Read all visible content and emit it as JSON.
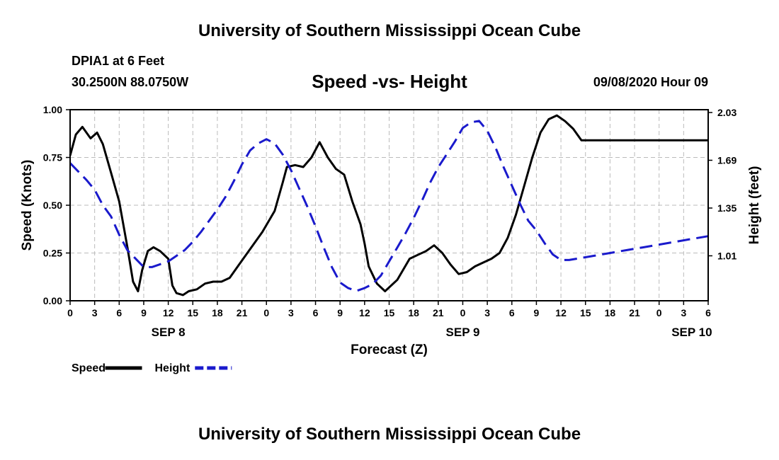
{
  "header": {
    "title": "University of Southern Mississippi Ocean Cube",
    "station": "DPIA1 at 6 Feet",
    "coords": "30.2500N 88.0750W",
    "subtitle": "Speed -vs- Height",
    "datestamp": "09/08/2020 Hour 09"
  },
  "footer": {
    "title": "University of Southern Mississippi Ocean Cube"
  },
  "chart_data": {
    "type": "line",
    "title": "Speed -vs- Height",
    "xlabel": "Forecast (Z)",
    "ylabel": "Speed (Knots)",
    "y2label": "Height (feet)",
    "grid": true,
    "x_range_hours": [
      0,
      78
    ],
    "x_ticks": [
      {
        "h": 0,
        "label": "0"
      },
      {
        "h": 3,
        "label": "3"
      },
      {
        "h": 6,
        "label": "6"
      },
      {
        "h": 9,
        "label": "9"
      },
      {
        "h": 12,
        "label": "12"
      },
      {
        "h": 15,
        "label": "15"
      },
      {
        "h": 18,
        "label": "18"
      },
      {
        "h": 21,
        "label": "21"
      },
      {
        "h": 24,
        "label": "0"
      },
      {
        "h": 27,
        "label": "3"
      },
      {
        "h": 30,
        "label": "6"
      },
      {
        "h": 33,
        "label": "9"
      },
      {
        "h": 36,
        "label": "12"
      },
      {
        "h": 39,
        "label": "15"
      },
      {
        "h": 42,
        "label": "18"
      },
      {
        "h": 45,
        "label": "21"
      },
      {
        "h": 48,
        "label": "0"
      },
      {
        "h": 51,
        "label": "3"
      },
      {
        "h": 54,
        "label": "6"
      },
      {
        "h": 57,
        "label": "9"
      },
      {
        "h": 60,
        "label": "12"
      },
      {
        "h": 63,
        "label": "15"
      },
      {
        "h": 66,
        "label": "18"
      },
      {
        "h": 69,
        "label": "21"
      },
      {
        "h": 72,
        "label": "0"
      },
      {
        "h": 75,
        "label": "3"
      },
      {
        "h": 78,
        "label": "6"
      }
    ],
    "date_labels": [
      {
        "h": 12,
        "label": "SEP 8"
      },
      {
        "h": 48,
        "label": "SEP 9"
      },
      {
        "h": 76,
        "label": "SEP 10"
      }
    ],
    "ylim": [
      0,
      1
    ],
    "y_ticks": [
      {
        "v": 0,
        "label": "0.00"
      },
      {
        "v": 0.25,
        "label": "0.25"
      },
      {
        "v": 0.5,
        "label": "0.50"
      },
      {
        "v": 0.75,
        "label": "0.75"
      },
      {
        "v": 1.0,
        "label": "1.00"
      }
    ],
    "y2lim": [
      0.69,
      2.05
    ],
    "y2_ticks": [
      {
        "v": 1.01,
        "label": "1.01"
      },
      {
        "v": 1.35,
        "label": "1.35"
      },
      {
        "v": 1.69,
        "label": "1.69"
      },
      {
        "v": 2.03,
        "label": "2.03"
      }
    ],
    "series": [
      {
        "name": "Speed",
        "axis": "left",
        "color": "#000000",
        "style": "solid",
        "x": [
          0,
          0.7,
          1.5,
          2.5,
          3.3,
          4,
          5,
          6,
          7,
          7.7,
          8.3,
          8.8,
          9.5,
          10.2,
          11,
          12,
          12.5,
          13,
          13.8,
          14.5,
          15.5,
          16.5,
          17.5,
          18.5,
          19.5,
          20.5,
          22,
          23.5,
          25,
          26,
          26.5,
          27.5,
          28.5,
          29.5,
          30.5,
          31.5,
          32.5,
          33.5,
          34.5,
          35.5,
          36,
          36.5,
          37.5,
          38.5,
          40,
          41.5,
          42.5,
          43.5,
          44.5,
          45.5,
          46.5,
          47.5,
          48.5,
          49.5,
          50.5,
          51.5,
          52.5,
          53.5,
          54.5,
          55.5,
          56.5,
          57.5,
          58.5,
          59.5,
          60.5,
          61.5,
          62.5,
          63.5,
          64.5,
          65.5,
          66.5,
          67.5,
          68.5,
          69.5,
          70.5,
          71.5,
          72.5,
          73.5,
          74.5,
          75.5,
          76.5,
          77.5,
          78
        ],
        "values": [
          0.76,
          0.87,
          0.91,
          0.85,
          0.88,
          0.82,
          0.67,
          0.52,
          0.28,
          0.1,
          0.05,
          0.16,
          0.26,
          0.28,
          0.26,
          0.22,
          0.08,
          0.04,
          0.03,
          0.05,
          0.06,
          0.09,
          0.1,
          0.1,
          0.12,
          0.18,
          0.27,
          0.36,
          0.47,
          0.62,
          0.7,
          0.71,
          0.7,
          0.75,
          0.83,
          0.75,
          0.69,
          0.66,
          0.52,
          0.4,
          0.3,
          0.18,
          0.09,
          0.05,
          0.11,
          0.22,
          0.24,
          0.26,
          0.29,
          0.25,
          0.19,
          0.14,
          0.15,
          0.18,
          0.2,
          0.22,
          0.25,
          0.33,
          0.45,
          0.6,
          0.75,
          0.88,
          0.95,
          0.97,
          0.94,
          0.9,
          0.84,
          0.84,
          0.84,
          0.84,
          0.84,
          0.84,
          0.84,
          0.84,
          0.84,
          0.84,
          0.84,
          0.84,
          0.84,
          0.84,
          0.84,
          0.84,
          0.84
        ]
      },
      {
        "name": "Height",
        "axis": "right",
        "color": "#1a1acc",
        "style": "dashed",
        "x": [
          0,
          1,
          2,
          3,
          4,
          5,
          6,
          7,
          8,
          9,
          10,
          11,
          12,
          13,
          14,
          15,
          16,
          17,
          18,
          19,
          20,
          21,
          22,
          23,
          24,
          25,
          26,
          27,
          28,
          29,
          30,
          31,
          32,
          33,
          34,
          35,
          36,
          37,
          38,
          39,
          40,
          41,
          42,
          43,
          44,
          45,
          46,
          47,
          48,
          49,
          50,
          51,
          52,
          53,
          54,
          55,
          56,
          57,
          58,
          59,
          60,
          61,
          62,
          63,
          64,
          65,
          66,
          67,
          68,
          69,
          70,
          71,
          72,
          73,
          74,
          75,
          76,
          77,
          78
        ],
        "values": [
          1.67,
          1.61,
          1.55,
          1.48,
          1.37,
          1.29,
          1.16,
          1.05,
          0.99,
          0.93,
          0.93,
          0.95,
          0.97,
          1.01,
          1.05,
          1.11,
          1.18,
          1.26,
          1.34,
          1.43,
          1.54,
          1.66,
          1.76,
          1.81,
          1.84,
          1.81,
          1.73,
          1.62,
          1.49,
          1.36,
          1.22,
          1.07,
          0.93,
          0.82,
          0.78,
          0.76,
          0.78,
          0.81,
          0.87,
          0.97,
          1.07,
          1.17,
          1.28,
          1.4,
          1.53,
          1.64,
          1.73,
          1.82,
          1.92,
          1.96,
          1.97,
          1.9,
          1.78,
          1.64,
          1.51,
          1.38,
          1.26,
          1.19,
          1.1,
          1.02,
          0.98,
          0.98,
          0.99,
          1.0,
          1.01,
          1.02,
          1.03,
          1.04,
          1.05,
          1.06,
          1.07,
          1.08,
          1.09,
          1.1,
          1.11,
          1.12,
          1.13,
          1.14,
          1.15
        ]
      }
    ],
    "legend": [
      {
        "label": "Speed",
        "color": "#000000",
        "style": "solid"
      },
      {
        "label": "Height",
        "color": "#1a1acc",
        "style": "dashed"
      }
    ]
  }
}
